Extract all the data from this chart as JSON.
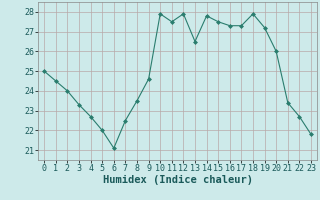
{
  "x": [
    0,
    1,
    2,
    3,
    4,
    5,
    6,
    7,
    8,
    9,
    10,
    11,
    12,
    13,
    14,
    15,
    16,
    17,
    18,
    19,
    20,
    21,
    22,
    23
  ],
  "y": [
    25.0,
    24.5,
    24.0,
    23.3,
    22.7,
    22.0,
    21.1,
    22.5,
    23.5,
    24.6,
    27.9,
    27.5,
    27.9,
    26.5,
    27.8,
    27.5,
    27.3,
    27.3,
    27.9,
    27.2,
    26.0,
    23.4,
    22.7,
    21.8
  ],
  "line_color": "#2a7d6e",
  "marker": "D",
  "marker_size": 2,
  "bg_color": "#cdeaea",
  "grid_color": "#b8a8a8",
  "xlabel": "Humidex (Indice chaleur)",
  "xlim": [
    -0.5,
    23.5
  ],
  "ylim": [
    20.5,
    28.5
  ],
  "yticks": [
    21,
    22,
    23,
    24,
    25,
    26,
    27,
    28
  ],
  "xticks": [
    0,
    1,
    2,
    3,
    4,
    5,
    6,
    7,
    8,
    9,
    10,
    11,
    12,
    13,
    14,
    15,
    16,
    17,
    18,
    19,
    20,
    21,
    22,
    23
  ],
  "xlabel_fontsize": 7.5,
  "tick_fontsize": 6.0
}
